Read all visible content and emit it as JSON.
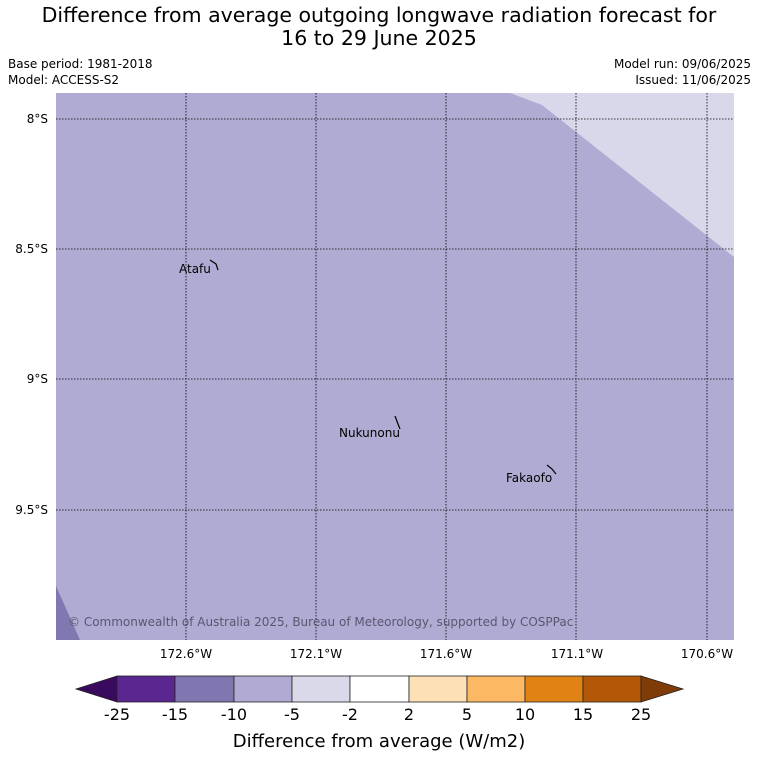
{
  "title_line1": "Difference from average outgoing longwave radiation forecast for",
  "title_line2": "16 to 29 June 2025",
  "base_period": "Base period: 1981-2018",
  "model": "Model: ACCESS-S2",
  "model_run": "Model run: 09/06/2025",
  "issued": "Issued: 11/06/2025",
  "map": {
    "lat_labels": [
      "8°S",
      "8.5°S",
      "9°S",
      "9.5°S"
    ],
    "lon_labels": [
      "172.6°W",
      "172.1°W",
      "171.6°W",
      "171.1°W",
      "170.6°W"
    ],
    "places": [
      "Atafu",
      "Nukunonu",
      "Fakaofo"
    ],
    "copyright": "© Commonwealth of Australia 2025, Bureau of Meteorology, supported by COSPPac",
    "fill_colors": {
      "dominant": "#b0abd3",
      "light": "#d8d8ea",
      "dark": "#8078b0"
    }
  },
  "colorbar": {
    "title": "Difference from average (W/m2)",
    "ticks": [
      "-25",
      "-15",
      "-10",
      "-5",
      "-2",
      "2",
      "5",
      "10",
      "15",
      "25"
    ],
    "colors": [
      "#3a0a5e",
      "#5a2690",
      "#8177b0",
      "#b1abd3",
      "#d9d9ea",
      "#ffffff",
      "#fee0b6",
      "#fdb863",
      "#e08214",
      "#b35806",
      "#7f3b08"
    ]
  }
}
